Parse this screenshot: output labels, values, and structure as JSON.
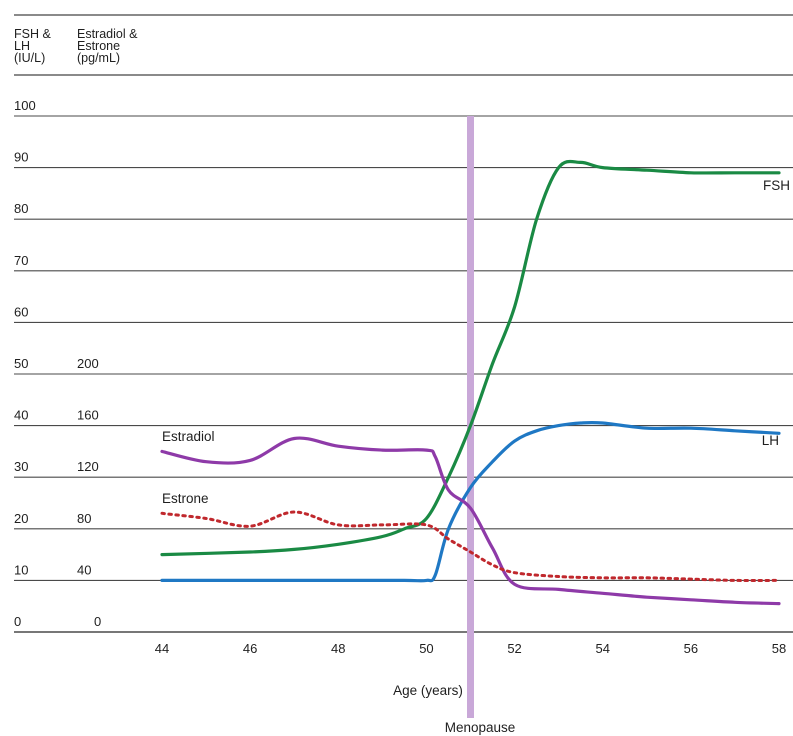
{
  "chart_data": {
    "type": "line",
    "y_axis_left": {
      "title_lines": [
        "FSH &",
        "LH",
        "(IU/L)"
      ],
      "ticks": [
        0,
        10,
        20,
        30,
        40,
        50,
        60,
        70,
        80,
        90,
        100
      ],
      "ylim": [
        0,
        100
      ]
    },
    "y_axis_right": {
      "title_lines": [
        "Estradiol &",
        "Estrone",
        "(pg/mL)"
      ],
      "ticks": [
        0,
        40,
        80,
        120,
        160,
        200
      ],
      "ylim": [
        0,
        400
      ]
    },
    "x_axis": {
      "label": "Age (years)",
      "ticks": [
        44,
        46,
        48,
        50,
        52,
        54,
        56,
        58
      ],
      "xlim": [
        44,
        58
      ]
    },
    "grid": true,
    "menopause": {
      "x": 51,
      "label": "Menopause",
      "color": "#c9a8d8"
    },
    "series": [
      {
        "name": "FSH",
        "axis": "left",
        "color": "#1a8a44",
        "dash": false,
        "x": [
          44,
          46,
          47,
          48,
          49,
          49.5,
          50,
          50.5,
          51,
          51.5,
          52,
          52.5,
          53,
          53.5,
          54,
          55,
          56,
          57,
          58
        ],
        "y": [
          15,
          15.5,
          16,
          17,
          18.5,
          20,
          22,
          30,
          40,
          52,
          63,
          80,
          90,
          91,
          90,
          89.5,
          89,
          89,
          89
        ]
      },
      {
        "name": "LH",
        "axis": "left",
        "color": "#1f78c4",
        "dash": false,
        "x": [
          44,
          46,
          48,
          49.5,
          50,
          50.2,
          50.5,
          51,
          51.5,
          52,
          52.5,
          53,
          53.5,
          54,
          55,
          56,
          57,
          58
        ],
        "y": [
          10,
          10,
          10,
          10,
          10,
          11,
          20,
          28,
          33,
          37,
          39,
          40,
          40.5,
          40.5,
          39.5,
          39.5,
          39,
          38.5
        ]
      },
      {
        "name": "Estradiol",
        "axis": "right",
        "color": "#8e3aa8",
        "dash": false,
        "x": [
          44,
          45,
          46,
          47,
          48,
          49,
          50,
          50.2,
          50.5,
          51,
          51.5,
          52,
          53,
          54,
          55,
          56,
          57,
          58
        ],
        "y": [
          140,
          132,
          133,
          150,
          144,
          141,
          141,
          136,
          110,
          96,
          65,
          37,
          33,
          30,
          27,
          25,
          23,
          22
        ]
      },
      {
        "name": "Estrone",
        "axis": "right",
        "color": "#c0282d",
        "dash": true,
        "x": [
          44,
          45,
          46,
          47,
          48,
          49,
          50,
          50.5,
          51,
          51.5,
          52,
          53,
          54,
          55,
          56,
          57,
          58
        ],
        "y": [
          92,
          88,
          82,
          93,
          83,
          83,
          83,
          72,
          62,
          52,
          46,
          43,
          42,
          42,
          41,
          40,
          40
        ]
      }
    ],
    "curve_labels": {
      "FSH": "FSH",
      "LH": "LH",
      "Estradiol": "Estradiol",
      "Estrone": "Estrone"
    }
  }
}
